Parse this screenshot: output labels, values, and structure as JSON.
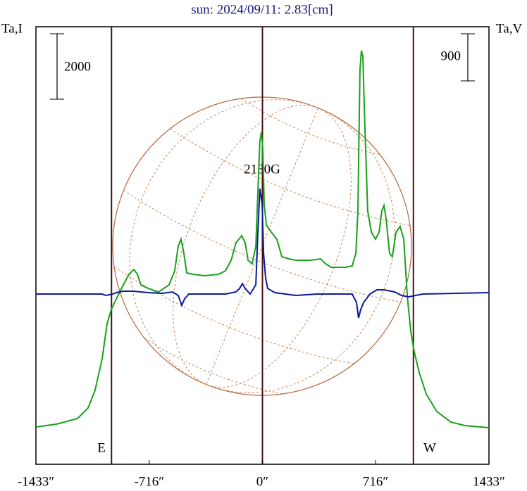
{
  "chart_data": {
    "type": "line",
    "title": "sun: 2024/09/11: 2.83[cm]",
    "y_label": "Ta,I",
    "y2_label": "Ta,V",
    "annotations": [
      "2130G",
      "E",
      "W"
    ],
    "xlim": [
      -1433,
      1433
    ],
    "xticks": [
      {
        "value": -1433,
        "label": "-1433″"
      },
      {
        "value": -716,
        "label": "-716″"
      },
      {
        "value": 0,
        "label": "0″"
      },
      {
        "value": 716,
        "label": "716″"
      },
      {
        "value": 1433,
        "label": "1433″"
      }
    ],
    "ylim": [
      0,
      13373
    ],
    "y2lim": [
      -3252,
      5107
    ],
    "vlines": [
      -955,
      0,
      955
    ],
    "scale_bars": [
      {
        "axis": "y",
        "value": 2000
      },
      {
        "axis": "y2",
        "value": 900
      }
    ],
    "series": [
      {
        "name": "Ta,I",
        "color": "#1aa01a",
        "x": [
          -1433,
          -1304,
          -1170,
          -1103,
          -1059,
          -1014,
          -983,
          -956,
          -925,
          -880,
          -845,
          -813,
          -791,
          -769,
          -724,
          -657,
          -591,
          -555,
          -533,
          -515,
          -497,
          -479,
          -435,
          -368,
          -279,
          -234,
          -198,
          -167,
          -131,
          -109,
          -91,
          -65,
          -42,
          -25,
          -16,
          -7,
          2,
          11,
          25,
          56,
          91,
          123,
          167,
          212,
          301,
          368,
          399,
          435,
          524,
          568,
          591,
          604,
          617,
          626,
          635,
          648,
          666,
          689,
          715,
          738,
          755,
          769,
          782,
          804,
          822,
          845,
          871,
          894,
          916,
          938,
          960,
          992,
          1036,
          1103,
          1192,
          1281,
          1433
        ],
        "values": [
          1140,
          1226,
          1398,
          1720,
          2258,
          3225,
          4300,
          4730,
          5053,
          5483,
          5805,
          5956,
          5805,
          5483,
          5375,
          5268,
          5483,
          5913,
          6665,
          6880,
          6450,
          5848,
          5805,
          5762,
          5805,
          5913,
          6235,
          6773,
          6988,
          6773,
          6235,
          6128,
          6665,
          8815,
          9890,
          10148,
          9675,
          7955,
          7310,
          7095,
          6880,
          6343,
          6278,
          6235,
          6235,
          6278,
          6128,
          6020,
          6020,
          6063,
          6450,
          7740,
          12040,
          12642,
          12470,
          10320,
          7740,
          7095,
          6880,
          7095,
          7740,
          7912,
          7525,
          6450,
          6343,
          7095,
          7267,
          6880,
          5160,
          4085,
          3440,
          2795,
          2150,
          1613,
          1290,
          1183,
          1118
        ]
      },
      {
        "name": "Ta,V",
        "color": "#0a1a9a",
        "axis": "y2",
        "x": [
          -1433,
          -1014,
          -992,
          -947,
          -925,
          -880,
          -813,
          -724,
          -635,
          -568,
          -533,
          -510,
          -493,
          -466,
          -234,
          -167,
          -145,
          -127,
          -109,
          -78,
          -42,
          -29,
          -16,
          -2,
          7,
          20,
          33,
          78,
          212,
          345,
          435,
          568,
          595,
          608,
          622,
          640,
          657,
          680,
          724,
          769,
          836,
          880,
          925,
          1014,
          1433
        ],
        "values": [
          0,
          0,
          -27,
          0,
          27,
          54,
          54,
          27,
          13,
          40,
          -27,
          -215,
          -94,
          0,
          0,
          40,
          107,
          201,
          107,
          0,
          175,
          1182,
          2014,
          1719,
          779,
          309,
          107,
          27,
          -27,
          0,
          0,
          0,
          -161,
          -457,
          -295,
          -161,
          -94,
          0,
          81,
          81,
          40,
          -27,
          -54,
          0,
          27
        ]
      }
    ]
  }
}
